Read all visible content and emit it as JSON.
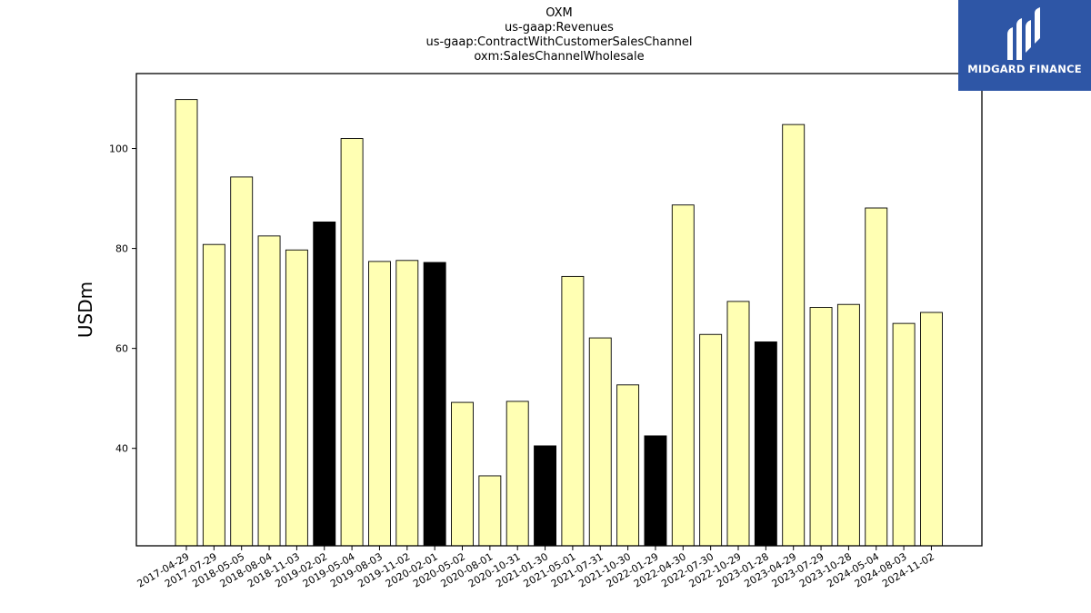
{
  "chart_data": {
    "type": "bar",
    "title_lines": [
      "OXM",
      "us-gaap:Revenues",
      "us-gaap:ContractWithCustomerSalesChannel",
      "oxm:SalesChannelWholesale"
    ],
    "ylabel": "USDm",
    "xlabel": "",
    "ylim": [
      20.5,
      115
    ],
    "yticks": [
      40,
      60,
      80,
      100
    ],
    "grid": false,
    "categories": [
      "2017-04-29",
      "2017-07-29",
      "2018-05-05",
      "2018-08-04",
      "2018-11-03",
      "2019-02-02",
      "2019-05-04",
      "2019-08-03",
      "2019-11-02",
      "2020-02-01",
      "2020-05-02",
      "2020-08-01",
      "2020-10-31",
      "2021-01-30",
      "2021-05-01",
      "2021-07-31",
      "2021-10-30",
      "2022-01-29",
      "2022-04-30",
      "2022-07-30",
      "2022-10-29",
      "2023-01-28",
      "2023-04-29",
      "2023-07-29",
      "2023-10-28",
      "2024-05-04",
      "2024-08-03",
      "2024-11-02"
    ],
    "values": [
      109.8,
      80.8,
      94.3,
      82.5,
      79.7,
      85.3,
      102.0,
      77.4,
      77.6,
      77.2,
      49.2,
      34.5,
      49.4,
      40.5,
      74.4,
      62.1,
      52.7,
      42.5,
      88.7,
      62.8,
      69.4,
      61.3,
      104.8,
      68.2,
      68.8,
      88.1,
      65.0,
      67.2
    ],
    "highlighted": [
      5,
      9,
      13,
      17,
      21
    ],
    "colors": {
      "bar_fill": "#ffffb3",
      "highlight_fill": "#000000",
      "edge": "#000000"
    }
  },
  "logo": {
    "text": "MIDGARD FINANCE",
    "background": "#2e56a6"
  }
}
